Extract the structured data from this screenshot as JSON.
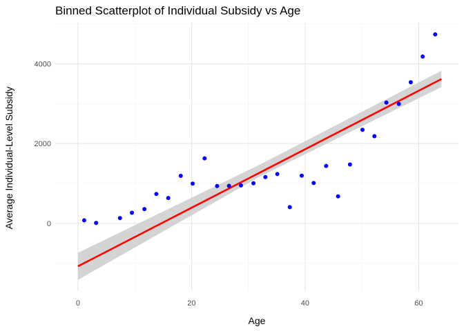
{
  "chart_data": {
    "type": "scatter",
    "title": "Binned Scatterplot of Individual Subsidy vs Age",
    "xlabel": "Age",
    "ylabel": "Average Individual-Level Subsidy",
    "xlim": [
      -4,
      67
    ],
    "ylim": [
      -1700,
      5050
    ],
    "x_ticks": [
      0,
      20,
      40,
      60
    ],
    "y_ticks": [
      0,
      2000,
      4000
    ],
    "x_tick_labels": [
      "0",
      "20",
      "40",
      "60"
    ],
    "y_tick_labels": [
      "0",
      "2000",
      "4000"
    ],
    "grid": true,
    "points": {
      "color": "#0000ff",
      "x": [
        1.1,
        3.2,
        7.4,
        9.5,
        11.7,
        13.8,
        15.9,
        18.1,
        20.2,
        22.3,
        24.5,
        26.6,
        28.7,
        30.9,
        33.0,
        35.1,
        37.3,
        39.4,
        41.5,
        43.7,
        45.8,
        47.9,
        50.1,
        52.2,
        54.3,
        56.5,
        58.6,
        60.7,
        62.9
      ],
      "y": [
        75,
        10,
        130,
        265,
        355,
        735,
        635,
        1190,
        995,
        1630,
        935,
        940,
        950,
        1005,
        1160,
        1235,
        405,
        1195,
        1010,
        1440,
        675,
        1475,
        2345,
        2185,
        3030,
        2995,
        3540,
        4185,
        4740
      ]
    },
    "fit_line": {
      "color": "#ff0000",
      "x": [
        0,
        64
      ],
      "y": [
        -1080,
        3620
      ]
    },
    "confidence_band": {
      "color": "#cccccc",
      "x": [
        0,
        32,
        64
      ],
      "lower": [
        -1420,
        1170,
        3420
      ],
      "upper": [
        -740,
        1470,
        3830
      ]
    }
  }
}
